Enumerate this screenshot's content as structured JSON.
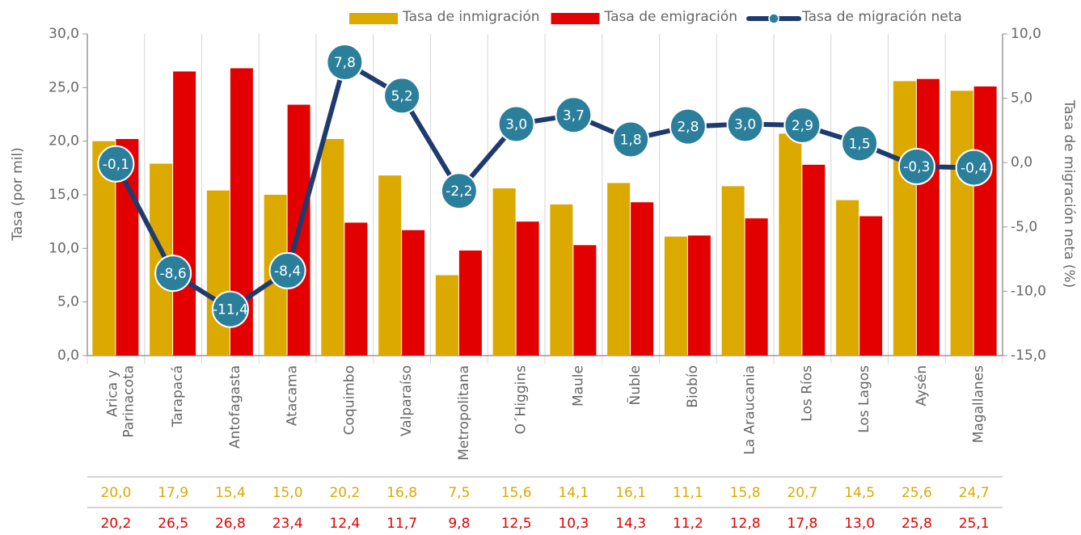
{
  "chart_data": {
    "type": "bar",
    "categories": [
      "Arica y Parinacota",
      "Tarapacá",
      "Antofagasta",
      "Atacama",
      "Coquimbo",
      "Valparaíso",
      "Metropolitana",
      "O´Higgins",
      "Maule",
      "Ñuble",
      "Biobío",
      "La Araucania",
      "Los Ríos",
      "Los Lagos",
      "Aysén",
      "Magallanes"
    ],
    "series": [
      {
        "name": "Tasa de inmigración",
        "color": "#dba900",
        "values": [
          20.0,
          17.9,
          15.4,
          15.0,
          20.2,
          16.8,
          7.5,
          15.6,
          14.1,
          16.1,
          11.1,
          15.8,
          20.7,
          14.5,
          25.6,
          24.7
        ],
        "value_labels": [
          "20,0",
          "17,9",
          "15,4",
          "15,0",
          "20,2",
          "16,8",
          "7,5",
          "15,6",
          "14,1",
          "16,1",
          "11,1",
          "15,8",
          "20,7",
          "14,5",
          "25,6",
          "24,7"
        ]
      },
      {
        "name": "Tasa de emigración",
        "color": "#e30000",
        "values": [
          20.2,
          26.5,
          26.8,
          23.4,
          12.4,
          11.7,
          9.8,
          12.5,
          10.3,
          14.3,
          11.2,
          12.8,
          17.8,
          13.0,
          25.8,
          25.1
        ],
        "value_labels": [
          "20,2",
          "26,5",
          "26,8",
          "23,4",
          "12,4",
          "11,7",
          "9,8",
          "12,5",
          "10,3",
          "14,3",
          "11,2",
          "12,8",
          "17,8",
          "13,0",
          "25,8",
          "25,1"
        ]
      },
      {
        "name": "Tasa de migración neta",
        "color": "#1f3b6e",
        "marker_color": "#2b7f9a",
        "type": "line",
        "axis": "y2",
        "values": [
          -0.1,
          -8.6,
          -11.4,
          -8.4,
          7.8,
          5.2,
          -2.2,
          3.0,
          3.7,
          1.8,
          2.8,
          3.0,
          2.9,
          1.5,
          -0.3,
          -0.4
        ],
        "value_labels": [
          "-0,1",
          "-8,6",
          "-11,4",
          "-8,4",
          "7,8",
          "5,2",
          "-2,2",
          "3,0",
          "3,7",
          "1,8",
          "2,8",
          "3,0",
          "2,9",
          "1,5",
          "-0,3",
          "-0,4"
        ]
      }
    ],
    "ylabel": "Tasa (por mil)",
    "y2label": "Tasa de migración neta (%)",
    "ylim": [
      0,
      30
    ],
    "yticks": [
      {
        "value": 0,
        "label": "0,0"
      },
      {
        "value": 5,
        "label": "5,0"
      },
      {
        "value": 10,
        "label": "10,0"
      },
      {
        "value": 15,
        "label": "15,0"
      },
      {
        "value": 20,
        "label": "20,0"
      },
      {
        "value": 25,
        "label": "25,0"
      },
      {
        "value": 30,
        "label": "30,0"
      }
    ],
    "y2lim": [
      -15,
      10
    ],
    "y2ticks": [
      {
        "value": -15,
        "label": "-15,0"
      },
      {
        "value": -10,
        "label": "-10,0"
      },
      {
        "value": -5,
        "label": "-5,0"
      },
      {
        "value": 0,
        "label": "0,0"
      },
      {
        "value": 5,
        "label": "5,0"
      },
      {
        "value": 10,
        "label": "10,0"
      }
    ],
    "legend": "top"
  }
}
